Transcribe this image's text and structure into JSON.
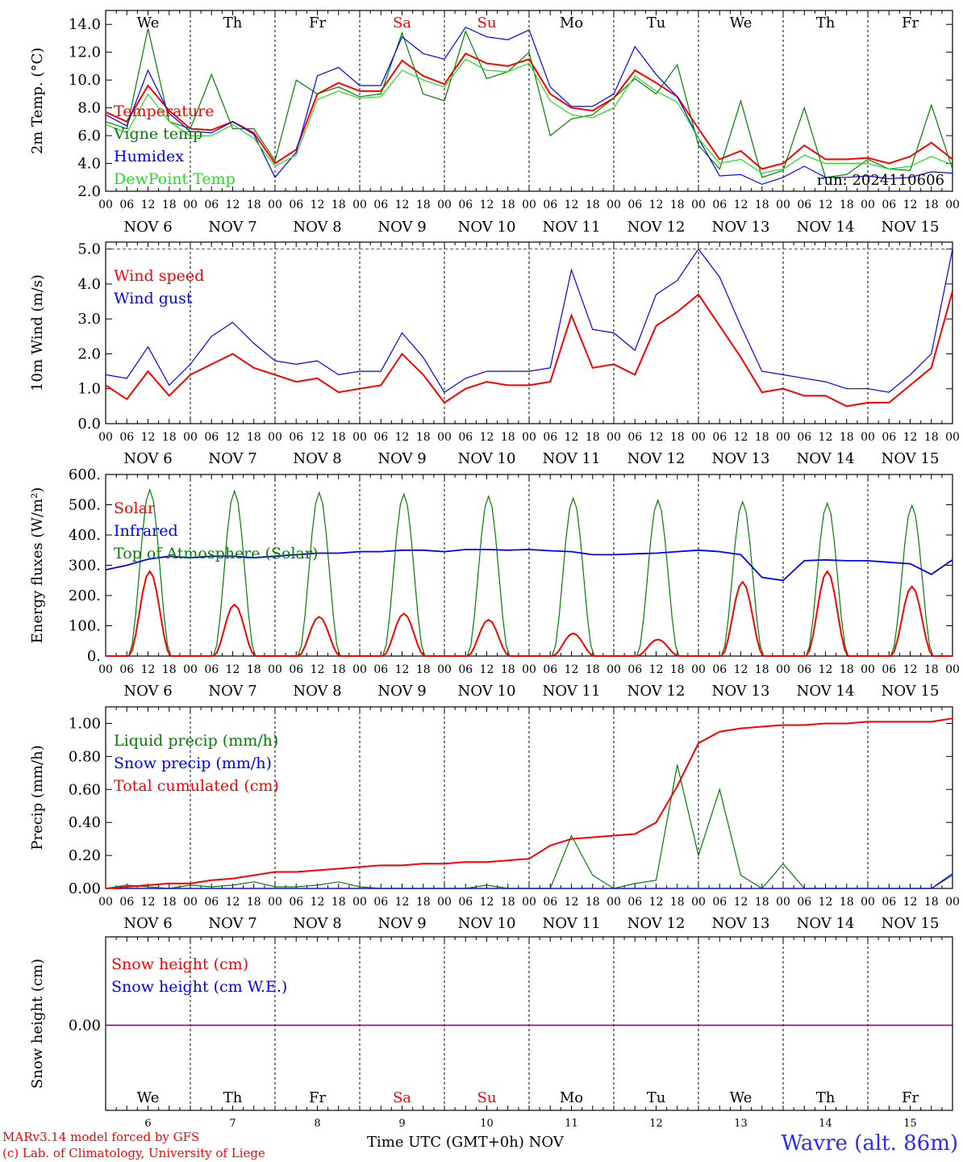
{
  "days_header": [
    "We",
    "Th",
    "Fr",
    "Sa",
    "Su",
    "Mo",
    "Tu",
    "We",
    "Th",
    "Fr"
  ],
  "weekend_days": [
    "Sa",
    "Su"
  ],
  "date_labels": [
    "NOV  6",
    "NOV  7",
    "NOV  8",
    "NOV  9",
    "NOV 10",
    "NOV 11",
    "NOV 12",
    "NOV 13",
    "NOV 14",
    "NOV 15"
  ],
  "hour_labels": [
    "00",
    "06",
    "12",
    "18"
  ],
  "bottom_day_numbers": [
    "6",
    "7",
    "8",
    "9",
    "10",
    "11",
    "12",
    "13",
    "14",
    "15"
  ],
  "footer": {
    "model": "MARv3.14 model forced by GFS",
    "credit": "(c) Lab. of Climatology, University of Liege",
    "axis_title": "Time UTC (GMT+0h)",
    "month": "NOV",
    "station": "Wavre (alt. 86m)"
  },
  "colors": {
    "red": "#ff0000",
    "green": "#008000",
    "blue": "#0000ff",
    "lightgreen": "#22dd22",
    "purple": "#800080"
  },
  "chart_data": [
    {
      "type": "line",
      "id": "temp",
      "ylabel": "2m Temp. (°C)",
      "ylim": [
        2.0,
        15.0
      ],
      "yticks": [
        "2.0",
        "4.0",
        "6.0",
        "8.0",
        "10.0",
        "12.0",
        "14.0"
      ],
      "run_label": "run: 2024110606",
      "x_hours": [
        0,
        6,
        12,
        18,
        24,
        30,
        36,
        42,
        48,
        54,
        60,
        66,
        72,
        78,
        84,
        90,
        96,
        102,
        108,
        114,
        120,
        126,
        132,
        138,
        144,
        150,
        156,
        162,
        168,
        174,
        180,
        186,
        192,
        198,
        204,
        210,
        216,
        222,
        228,
        234,
        240
      ],
      "series": [
        {
          "name": "Temperature",
          "color": "red",
          "values": [
            7.7,
            7.0,
            9.6,
            7.8,
            6.5,
            6.4,
            7.0,
            6.2,
            4.0,
            5.0,
            9.0,
            9.8,
            9.2,
            9.2,
            11.4,
            10.3,
            9.7,
            11.9,
            11.2,
            11.0,
            11.5,
            9.0,
            8.0,
            7.8,
            8.7,
            10.7,
            9.8,
            8.8,
            6.5,
            4.3,
            4.9,
            3.6,
            4.0,
            5.3,
            4.3,
            4.3,
            4.4,
            4.0,
            4.5,
            5.5,
            4.3
          ]
        },
        {
          "name": "Vigne temp",
          "color": "green",
          "values": [
            7.0,
            6.5,
            13.7,
            7.0,
            6.5,
            10.4,
            6.5,
            6.5,
            4.2,
            10.0,
            9.0,
            9.5,
            8.8,
            9.0,
            13.4,
            9.0,
            8.5,
            13.5,
            10.1,
            10.6,
            12.0,
            6.0,
            7.2,
            7.5,
            8.7,
            10.1,
            9.0,
            11.1,
            5.3,
            3.6,
            8.5,
            3.0,
            3.5,
            8.0,
            3.0,
            3.2,
            4.3,
            3.6,
            3.5,
            8.2,
            3.6
          ]
        },
        {
          "name": "Humidex",
          "color": "blue",
          "values": [
            7.5,
            6.7,
            10.7,
            7.6,
            6.3,
            6.2,
            7.0,
            6.1,
            3.0,
            4.8,
            10.3,
            10.9,
            9.6,
            9.6,
            13.1,
            11.9,
            11.5,
            13.8,
            13.1,
            12.9,
            13.6,
            9.5,
            8.1,
            8.1,
            9.0,
            12.4,
            10.4,
            8.8,
            5.8,
            3.1,
            3.2,
            2.5,
            3.0,
            3.8,
            3.0,
            3.0,
            3.1,
            2.9,
            3.0,
            3.4,
            3.3
          ]
        },
        {
          "name": "DewPoint Temp",
          "color": "lightgreen",
          "values": [
            6.8,
            6.2,
            9.0,
            7.0,
            6.0,
            6.0,
            6.8,
            5.8,
            3.8,
            4.6,
            8.6,
            9.2,
            8.7,
            8.8,
            10.7,
            10.0,
            9.5,
            11.5,
            10.7,
            10.6,
            11.2,
            8.5,
            7.5,
            7.3,
            8.0,
            10.3,
            9.2,
            8.4,
            5.8,
            4.0,
            4.3,
            3.3,
            3.6,
            4.6,
            4.0,
            4.0,
            4.0,
            3.6,
            3.8,
            4.5,
            3.9
          ]
        }
      ]
    },
    {
      "type": "line",
      "id": "wind",
      "ylabel": "10m Wind (m/s)",
      "ylim": [
        0.0,
        5.2
      ],
      "yticks": [
        "0.0",
        "1.0",
        "2.0",
        "3.0",
        "4.0",
        "5.0"
      ],
      "dashed_ref": 5.0,
      "x_hours": [
        0,
        6,
        12,
        18,
        24,
        30,
        36,
        42,
        48,
        54,
        60,
        66,
        72,
        78,
        84,
        90,
        96,
        102,
        108,
        114,
        120,
        126,
        132,
        138,
        144,
        150,
        156,
        162,
        168,
        174,
        180,
        186,
        192,
        198,
        204,
        210,
        216,
        222,
        228,
        234,
        240
      ],
      "series": [
        {
          "name": "Wind speed",
          "color": "red",
          "values": [
            1.1,
            0.7,
            1.5,
            0.8,
            1.4,
            1.7,
            2.0,
            1.6,
            1.4,
            1.2,
            1.3,
            0.9,
            1.0,
            1.1,
            2.0,
            1.4,
            0.6,
            1.0,
            1.2,
            1.1,
            1.1,
            1.2,
            3.1,
            1.6,
            1.7,
            1.4,
            2.8,
            3.2,
            3.7,
            2.8,
            1.9,
            0.9,
            1.0,
            0.8,
            0.8,
            0.5,
            0.6,
            0.6,
            1.1,
            1.6,
            3.8
          ]
        },
        {
          "name": "Wind gust",
          "color": "blue",
          "values": [
            1.4,
            1.3,
            2.2,
            1.1,
            1.7,
            2.5,
            2.9,
            2.3,
            1.8,
            1.7,
            1.8,
            1.4,
            1.5,
            1.5,
            2.6,
            1.9,
            0.9,
            1.3,
            1.5,
            1.5,
            1.5,
            1.6,
            4.4,
            2.7,
            2.6,
            2.1,
            3.7,
            4.1,
            5.0,
            4.2,
            2.8,
            1.5,
            1.4,
            1.3,
            1.2,
            1.0,
            1.0,
            0.9,
            1.4,
            2.0,
            5.0
          ]
        }
      ]
    },
    {
      "type": "line",
      "id": "energy",
      "ylabel": "Energy fluxes (W/m²)",
      "ylim": [
        0,
        600
      ],
      "yticks": [
        "0.",
        "100.",
        "200.",
        "300.",
        "400.",
        "500.",
        "600."
      ],
      "peaks": {
        "solar": [
          280,
          170,
          130,
          140,
          120,
          75,
          55,
          245,
          280,
          230
        ],
        "toa": [
          550,
          545,
          540,
          535,
          528,
          522,
          515,
          510,
          505,
          498
        ]
      },
      "infrared_x_hours": [
        0,
        6,
        12,
        18,
        24,
        30,
        36,
        42,
        48,
        54,
        60,
        66,
        72,
        78,
        84,
        90,
        96,
        102,
        108,
        114,
        120,
        126,
        132,
        138,
        144,
        150,
        156,
        162,
        168,
        174,
        180,
        186,
        192,
        198,
        204,
        210,
        216,
        222,
        228,
        234,
        240
      ],
      "infrared_values": [
        285,
        300,
        320,
        330,
        325,
        330,
        330,
        325,
        330,
        335,
        340,
        340,
        345,
        345,
        350,
        350,
        345,
        352,
        352,
        350,
        352,
        348,
        345,
        335,
        335,
        338,
        340,
        345,
        350,
        345,
        335,
        260,
        250,
        315,
        318,
        315,
        315,
        310,
        305,
        270,
        318
      ],
      "series": [
        {
          "name": "Solar",
          "color": "red"
        },
        {
          "name": "Infrared",
          "color": "blue"
        },
        {
          "name": "Top of Atmosphere (Solar)",
          "color": "green"
        }
      ]
    },
    {
      "type": "line",
      "id": "precip",
      "ylabel": "Precip (mm/h)",
      "ylim": [
        0.0,
        1.1
      ],
      "yticks": [
        "0.00",
        "0.20",
        "0.40",
        "0.60",
        "0.80",
        "1.00"
      ],
      "x_hours": [
        0,
        6,
        12,
        18,
        24,
        30,
        36,
        42,
        48,
        54,
        60,
        66,
        72,
        78,
        84,
        90,
        96,
        102,
        108,
        114,
        120,
        126,
        132,
        138,
        144,
        150,
        156,
        162,
        168,
        174,
        180,
        186,
        192,
        198,
        204,
        210,
        216,
        222,
        228,
        234,
        240
      ],
      "series": [
        {
          "name": "Liquid precip (mm/h)",
          "color": "green",
          "values": [
            0.0,
            0.02,
            0.01,
            0.0,
            0.02,
            0.01,
            0.02,
            0.04,
            0.01,
            0.01,
            0.02,
            0.04,
            0.01,
            0.0,
            0.0,
            0.0,
            0.0,
            0.0,
            0.02,
            0.0,
            0.0,
            0.0,
            0.32,
            0.08,
            0.0,
            0.03,
            0.05,
            0.75,
            0.2,
            0.6,
            0.08,
            0.0,
            0.15,
            0.0,
            0.0,
            0.0,
            0.0,
            0.0,
            0.0,
            0.0,
            0.08
          ]
        },
        {
          "name": "Snow precip (mm/h)",
          "color": "blue",
          "values": [
            0,
            0,
            0,
            0,
            0,
            0,
            0,
            0,
            0,
            0,
            0,
            0,
            0,
            0,
            0,
            0,
            0,
            0,
            0,
            0,
            0,
            0,
            0,
            0,
            0,
            0,
            0,
            0,
            0,
            0,
            0,
            0,
            0,
            0,
            0,
            0,
            0,
            0,
            0,
            0,
            0.09
          ]
        },
        {
          "name": "Total cumulated (cm)",
          "color": "red",
          "values": [
            0.0,
            0.01,
            0.02,
            0.03,
            0.03,
            0.05,
            0.06,
            0.08,
            0.1,
            0.1,
            0.11,
            0.12,
            0.13,
            0.14,
            0.14,
            0.15,
            0.15,
            0.16,
            0.16,
            0.17,
            0.18,
            0.26,
            0.3,
            0.31,
            0.32,
            0.33,
            0.4,
            0.62,
            0.88,
            0.95,
            0.97,
            0.98,
            0.99,
            0.99,
            1.0,
            1.0,
            1.01,
            1.01,
            1.01,
            1.01,
            1.03
          ]
        }
      ]
    },
    {
      "type": "line",
      "id": "snow",
      "ylabel": "Snow height (cm)",
      "yticks": [
        "0.00"
      ],
      "series": [
        {
          "name": "Snow height (cm)",
          "color": "red",
          "values": [
            0.0,
            0.0
          ]
        },
        {
          "name": "Snow height (cm W.E.)",
          "color": "blue",
          "values": [
            0.0,
            0.0
          ]
        }
      ]
    }
  ]
}
